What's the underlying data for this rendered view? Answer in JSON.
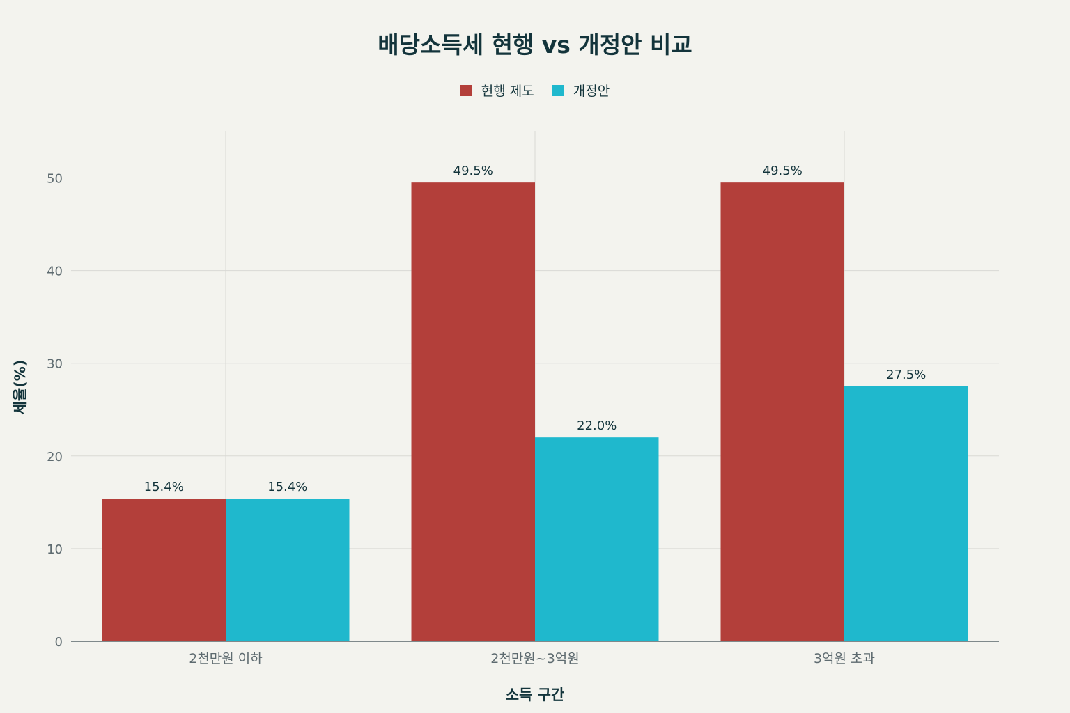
{
  "chart_data": {
    "type": "bar",
    "title": "배당소득세 현행 vs 개정안 비교",
    "xlabel": "소득 구간",
    "ylabel": "세율(%)",
    "categories": [
      "2천만원 이하",
      "2천만원~3억원",
      "3억원 초과"
    ],
    "series": [
      {
        "name": "현행 제도",
        "values": [
          15.4,
          49.5,
          49.5
        ],
        "labels": [
          "15.4%",
          "49.5%",
          "49.5%"
        ],
        "color": "#b33f3a"
      },
      {
        "name": "개정안",
        "values": [
          15.4,
          22.0,
          27.5
        ],
        "labels": [
          "15.4%",
          "22.0%",
          "27.5%"
        ],
        "color": "#1fb8cd"
      }
    ],
    "ylim": [
      0,
      55
    ],
    "yticks": [
      0,
      10,
      20,
      30,
      40,
      50
    ],
    "grid": true,
    "legend_position": "top-center"
  }
}
